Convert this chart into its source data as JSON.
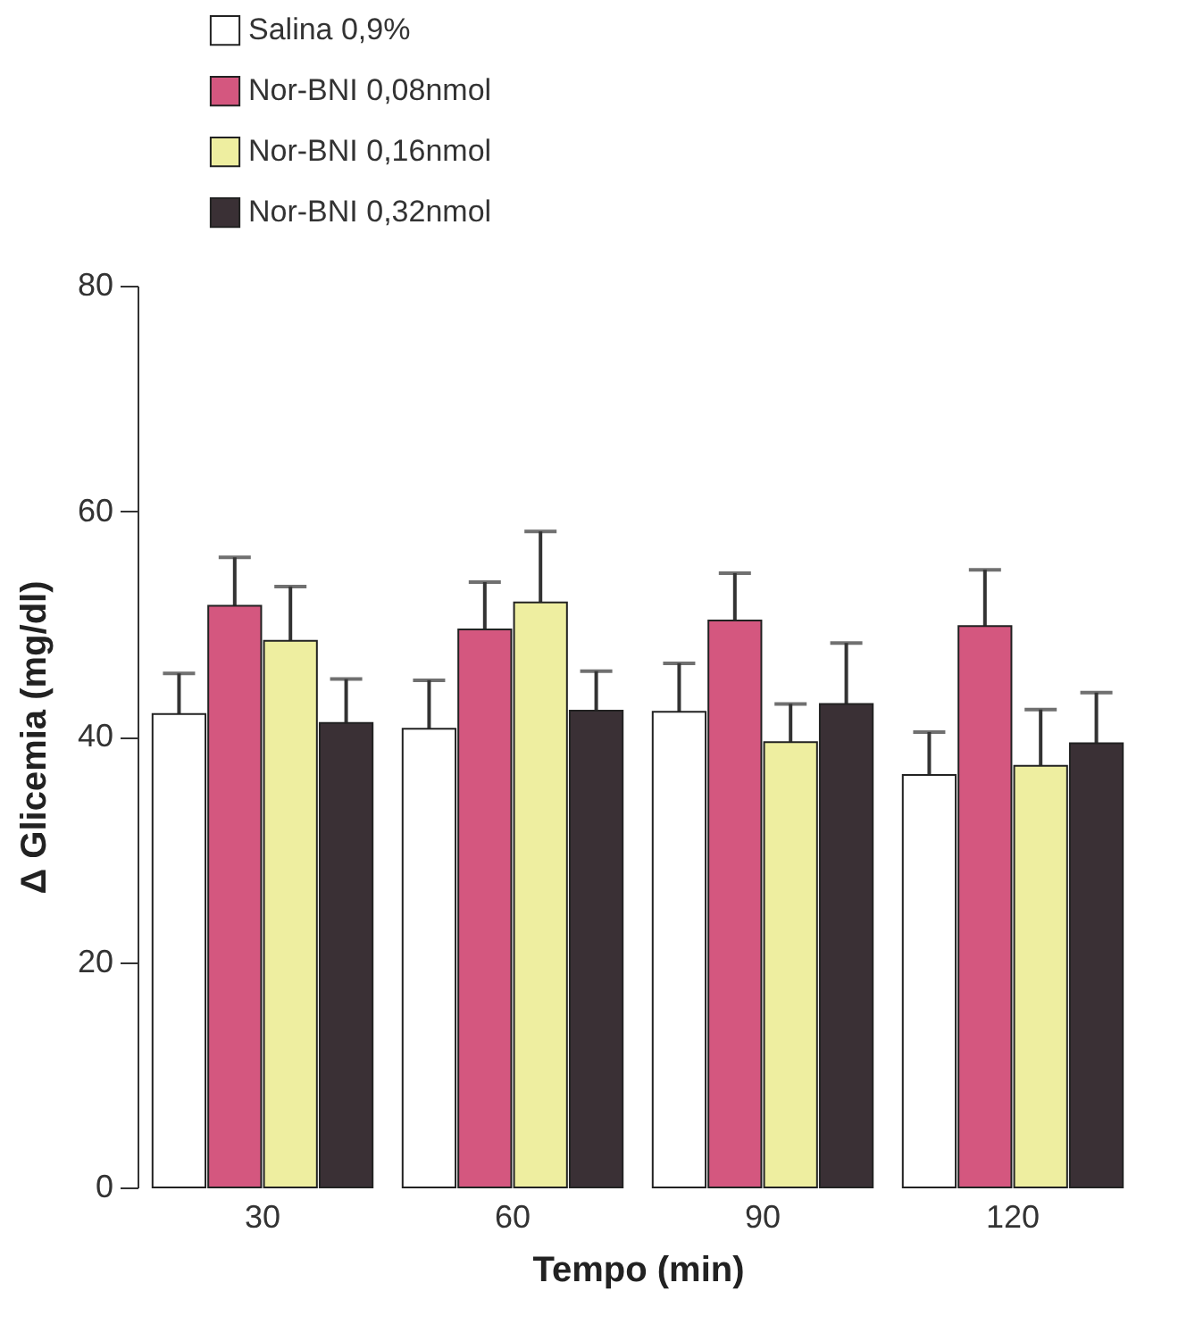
{
  "chart_data": {
    "type": "bar",
    "xlabel": "Tempo (min)",
    "ylabel": "Δ Glicemia (mg/dl)",
    "categories": [
      "30",
      "60",
      "90",
      "120"
    ],
    "ylim": [
      0,
      80
    ],
    "yticks": [
      0,
      20,
      40,
      60,
      80
    ],
    "legend": "top left",
    "grid": false,
    "series": [
      {
        "name": "Salina 0,9%",
        "color": "#ffffff",
        "values": [
          42,
          40.7,
          42.2,
          36.6
        ],
        "errors": [
          [
            42,
            45.6
          ],
          [
            40.7,
            45
          ],
          [
            42.2,
            46.5
          ],
          [
            36.6,
            40.4
          ]
        ]
      },
      {
        "name": "Nor-BNI 0,08nmol",
        "color": "#d4577f",
        "values": [
          51.6,
          49.5,
          50.3,
          49.8
        ],
        "errors": [
          [
            51.6,
            55.9
          ],
          [
            49.5,
            53.7
          ],
          [
            50.3,
            54.5
          ],
          [
            49.8,
            54.8
          ]
        ]
      },
      {
        "name": "Nor-BNI 0,16nmol",
        "color": "#eeeea0",
        "values": [
          48.5,
          51.9,
          39.5,
          37.4
        ],
        "errors": [
          [
            48.5,
            53.3
          ],
          [
            51.9,
            58.2
          ],
          [
            39.5,
            42.9
          ],
          [
            37.4,
            42.4
          ]
        ]
      },
      {
        "name": "Nor-BNI 0,32nmol",
        "color": "#3a3035",
        "values": [
          41.2,
          42.3,
          42.9,
          39.4
        ],
        "errors": [
          [
            41.2,
            45.1
          ],
          [
            42.3,
            45.8
          ],
          [
            42.9,
            48.3
          ],
          [
            39.4,
            43.9
          ]
        ]
      }
    ]
  }
}
